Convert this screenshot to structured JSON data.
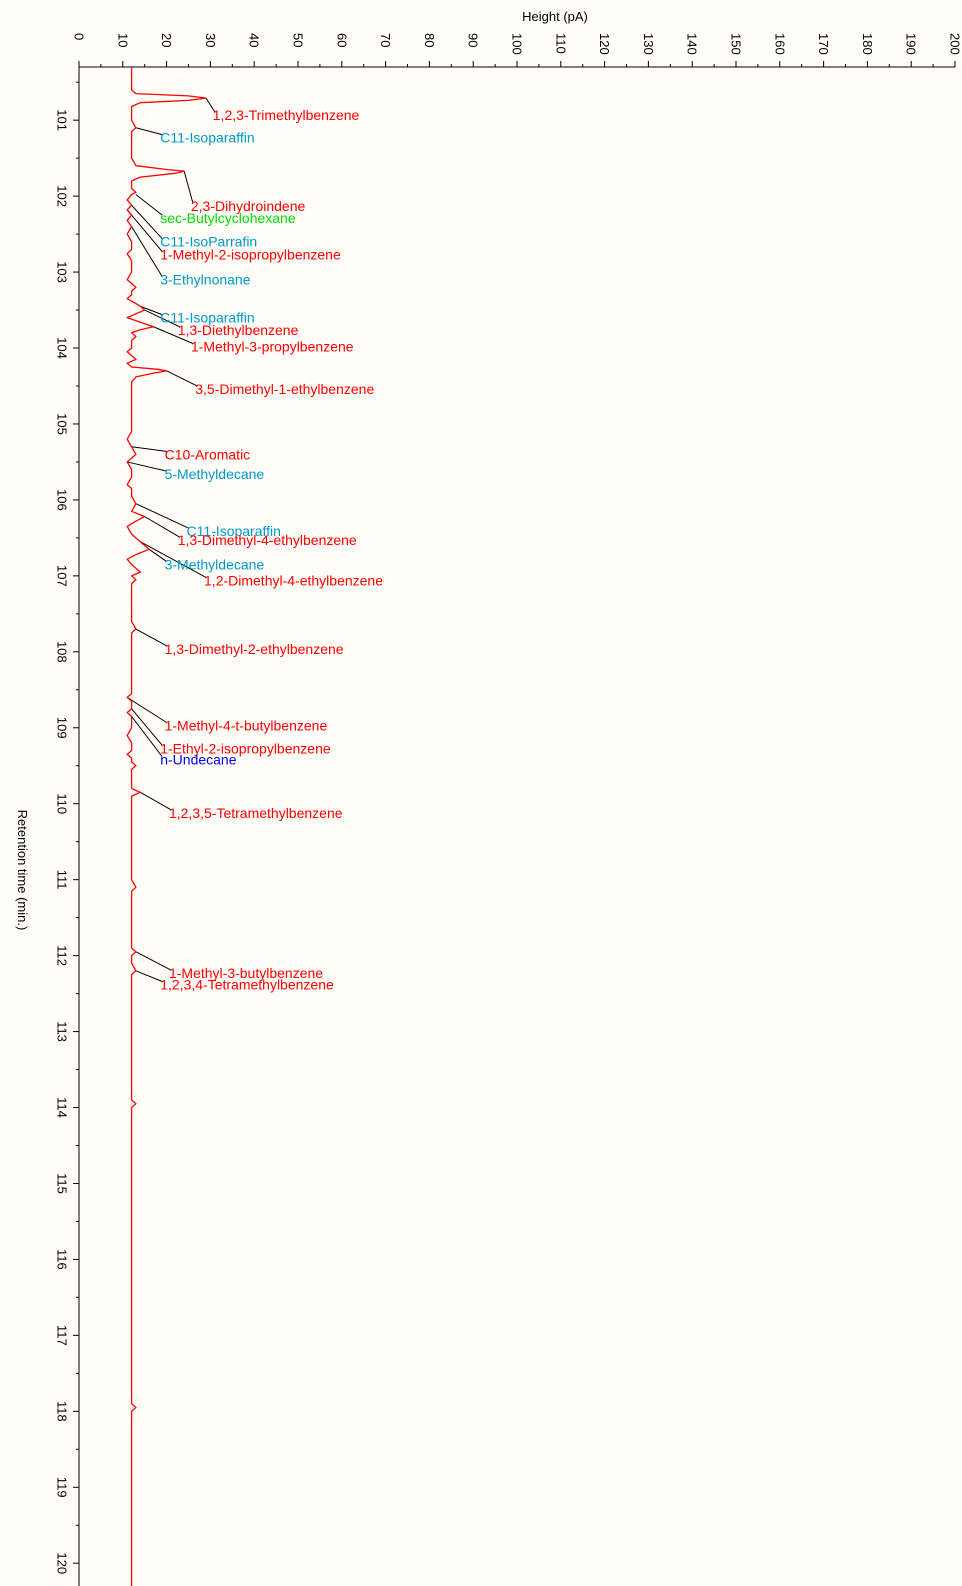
{
  "chart_data": {
    "type": "line",
    "xlabel": "Height (pA)",
    "ylabel": "Retention time (min.)",
    "xlim": [
      0,
      200
    ],
    "ylim": [
      100.3,
      120.3
    ],
    "x_ticks": [
      "0",
      "10",
      "20",
      "30",
      "40",
      "50",
      "60",
      "70",
      "80",
      "90",
      "100",
      "110",
      "120",
      "130",
      "140",
      "150",
      "160",
      "170",
      "180",
      "190",
      "200"
    ],
    "y_ticks": [
      "101",
      "102",
      "103",
      "104",
      "105",
      "106",
      "107",
      "108",
      "109",
      "110",
      "111",
      "112",
      "113",
      "114",
      "115",
      "116",
      "117",
      "118",
      "119",
      "120"
    ],
    "grid": false,
    "colors": {
      "trace": "#ff0000",
      "aromatic": "#ff0000",
      "isoparaffin": "#0099cc",
      "naphthene": "#00dd00",
      "n_paraffin": "#0000ff",
      "leader": "#000000"
    },
    "series": [
      {
        "color": "#ff0000",
        "points": [
          [
            100.3,
            12
          ],
          [
            100.6,
            12
          ],
          [
            100.65,
            13
          ],
          [
            100.68,
            25
          ],
          [
            100.71,
            29
          ],
          [
            100.74,
            25
          ],
          [
            100.77,
            14
          ],
          [
            100.82,
            12
          ],
          [
            101.0,
            12
          ],
          [
            101.1,
            13
          ],
          [
            101.15,
            12
          ],
          [
            101.5,
            12
          ],
          [
            101.6,
            13
          ],
          [
            101.65,
            20
          ],
          [
            101.67,
            24
          ],
          [
            101.7,
            22
          ],
          [
            101.75,
            14
          ],
          [
            101.8,
            12
          ],
          [
            101.9,
            12
          ],
          [
            101.95,
            13
          ],
          [
            101.98,
            12
          ],
          [
            102.05,
            11
          ],
          [
            102.12,
            12
          ],
          [
            102.18,
            11
          ],
          [
            102.25,
            12
          ],
          [
            102.32,
            11
          ],
          [
            102.4,
            12
          ],
          [
            102.5,
            11
          ],
          [
            102.6,
            12
          ],
          [
            102.7,
            12
          ],
          [
            102.76,
            11
          ],
          [
            102.85,
            12
          ],
          [
            103.0,
            12
          ],
          [
            103.1,
            11
          ],
          [
            103.15,
            12
          ],
          [
            103.2,
            13
          ],
          [
            103.25,
            12
          ],
          [
            103.3,
            12
          ],
          [
            103.35,
            11
          ],
          [
            103.45,
            14
          ],
          [
            103.5,
            15
          ],
          [
            103.55,
            13
          ],
          [
            103.6,
            11
          ],
          [
            103.68,
            15
          ],
          [
            103.72,
            17
          ],
          [
            103.76,
            14
          ],
          [
            103.8,
            12
          ],
          [
            103.85,
            13
          ],
          [
            103.9,
            12
          ],
          [
            104.0,
            12
          ],
          [
            104.05,
            11
          ],
          [
            104.1,
            12
          ],
          [
            104.15,
            13
          ],
          [
            104.2,
            11
          ],
          [
            104.25,
            12
          ],
          [
            104.28,
            18
          ],
          [
            104.3,
            20
          ],
          [
            104.33,
            17
          ],
          [
            104.38,
            13
          ],
          [
            104.45,
            12
          ],
          [
            104.8,
            12
          ],
          [
            105.0,
            12
          ],
          [
            105.1,
            12
          ],
          [
            105.2,
            11
          ],
          [
            105.3,
            12
          ],
          [
            105.4,
            13
          ],
          [
            105.5,
            11
          ],
          [
            105.6,
            12
          ],
          [
            105.7,
            12
          ],
          [
            105.8,
            11
          ],
          [
            105.85,
            12
          ],
          [
            105.95,
            12
          ],
          [
            106.05,
            13
          ],
          [
            106.15,
            12
          ],
          [
            106.22,
            15
          ],
          [
            106.28,
            13
          ],
          [
            106.35,
            11
          ],
          [
            106.45,
            12
          ],
          [
            106.55,
            14
          ],
          [
            106.65,
            16
          ],
          [
            106.72,
            13
          ],
          [
            106.78,
            11
          ],
          [
            106.85,
            12
          ],
          [
            106.9,
            13
          ],
          [
            106.95,
            14
          ],
          [
            107.0,
            12
          ],
          [
            107.05,
            13
          ],
          [
            107.1,
            12
          ],
          [
            107.2,
            12
          ],
          [
            107.5,
            12
          ],
          [
            107.6,
            12
          ],
          [
            107.7,
            13
          ],
          [
            107.75,
            12
          ],
          [
            107.8,
            12
          ],
          [
            108.0,
            12
          ],
          [
            108.2,
            12
          ],
          [
            108.4,
            12
          ],
          [
            108.55,
            12
          ],
          [
            108.6,
            11
          ],
          [
            108.65,
            12
          ],
          [
            108.75,
            12
          ],
          [
            108.8,
            11
          ],
          [
            108.85,
            12
          ],
          [
            109.0,
            12
          ],
          [
            109.1,
            11
          ],
          [
            109.2,
            12
          ],
          [
            109.3,
            12
          ],
          [
            109.35,
            11
          ],
          [
            109.4,
            12
          ],
          [
            109.45,
            12
          ],
          [
            109.5,
            13
          ],
          [
            109.55,
            12
          ],
          [
            109.7,
            12
          ],
          [
            109.8,
            12
          ],
          [
            109.85,
            14
          ],
          [
            109.9,
            12
          ],
          [
            110.0,
            12
          ],
          [
            110.3,
            12
          ],
          [
            110.5,
            12
          ],
          [
            110.6,
            12
          ],
          [
            110.85,
            12
          ],
          [
            111.0,
            12
          ],
          [
            111.1,
            13
          ],
          [
            111.15,
            12
          ],
          [
            111.3,
            12
          ],
          [
            111.5,
            12
          ],
          [
            111.6,
            12
          ],
          [
            111.9,
            12
          ],
          [
            111.95,
            13
          ],
          [
            112.0,
            12
          ],
          [
            112.1,
            12
          ],
          [
            112.2,
            13
          ],
          [
            112.25,
            12
          ],
          [
            112.35,
            12
          ],
          [
            112.45,
            12
          ],
          [
            112.55,
            12
          ],
          [
            113.0,
            12
          ],
          [
            113.5,
            12
          ],
          [
            113.9,
            12
          ],
          [
            113.95,
            13
          ],
          [
            114.0,
            12
          ],
          [
            114.5,
            12
          ],
          [
            115.0,
            12
          ],
          [
            116.0,
            12
          ],
          [
            117.0,
            12
          ],
          [
            117.9,
            12
          ],
          [
            117.95,
            13
          ],
          [
            118.0,
            12
          ],
          [
            119.0,
            12
          ],
          [
            119.5,
            12
          ],
          [
            120.3,
            12
          ]
        ]
      }
    ],
    "annotations": [
      {
        "text": "1,2,3-Trimethylbenzene",
        "rt": 100.71,
        "height": 29,
        "ty": 100.93,
        "tx": 31,
        "kind": "aromatic"
      },
      {
        "text": "C11-Isoparaffin",
        "rt": 101.1,
        "height": 13,
        "ty": 101.23,
        "tx": 19,
        "kind": "isoparaffin"
      },
      {
        "text": "2,3-Dihydroindene",
        "rt": 101.67,
        "height": 24,
        "ty": 102.13,
        "tx": 26,
        "kind": "aromatic"
      },
      {
        "text": "sec-Butylcyclohexane",
        "rt": 101.98,
        "height": 13,
        "ty": 102.29,
        "tx": 19,
        "kind": "naphthene"
      },
      {
        "text": "C11-IsoParrafin",
        "rt": 102.12,
        "height": 12,
        "ty": 102.6,
        "tx": 19,
        "kind": "isoparaffin"
      },
      {
        "text": "1-Methyl-2-isopropylbenzene",
        "rt": 102.25,
        "height": 12,
        "ty": 102.77,
        "tx": 19,
        "kind": "aromatic"
      },
      {
        "text": "3-Ethylnonane",
        "rt": 102.4,
        "height": 12,
        "ty": 103.1,
        "tx": 19,
        "kind": "isoparaffin"
      },
      {
        "text": "C11-Isoparaffin",
        "rt": 103.45,
        "height": 14,
        "ty": 103.6,
        "tx": 19,
        "kind": "isoparaffin"
      },
      {
        "text": "1,3-Diethylbenzene",
        "rt": 103.5,
        "height": 15,
        "ty": 103.76,
        "tx": 23,
        "kind": "aromatic"
      },
      {
        "text": "1-Methyl-3-propylbenzene",
        "rt": 103.72,
        "height": 17,
        "ty": 103.98,
        "tx": 26,
        "kind": "aromatic"
      },
      {
        "text": "3,5-Dimethyl-1-ethylbenzene",
        "rt": 104.3,
        "height": 20,
        "ty": 104.54,
        "tx": 27,
        "kind": "aromatic"
      },
      {
        "text": "C10-Aromatic",
        "rt": 105.3,
        "height": 12,
        "ty": 105.4,
        "tx": 20,
        "kind": "aromatic"
      },
      {
        "text": "5-Methyldecane",
        "rt": 105.5,
        "height": 11,
        "ty": 105.66,
        "tx": 20,
        "kind": "isoparaffin"
      },
      {
        "text": "C11-Isoparaffin",
        "rt": 106.05,
        "height": 13,
        "ty": 106.41,
        "tx": 25,
        "kind": "isoparaffin"
      },
      {
        "text": "1,3-Dimethyl-4-ethylbenzene",
        "rt": 106.22,
        "height": 15,
        "ty": 106.53,
        "tx": 23,
        "kind": "aromatic"
      },
      {
        "text": "3-Methyldecane",
        "rt": 106.65,
        "height": 16,
        "ty": 106.85,
        "tx": 20,
        "kind": "isoparaffin"
      },
      {
        "text": "1,2-Dimethyl-4-ethylbenzene",
        "rt": 106.55,
        "height": 14,
        "ty": 107.06,
        "tx": 29,
        "kind": "aromatic"
      },
      {
        "text": "1,3-Dimethyl-2-ethylbenzene",
        "rt": 107.7,
        "height": 13,
        "ty": 107.96,
        "tx": 20,
        "kind": "aromatic"
      },
      {
        "text": "1-Methyl-4-t-butylbenzene",
        "rt": 108.6,
        "height": 11,
        "ty": 108.97,
        "tx": 20,
        "kind": "aromatic"
      },
      {
        "text": "1-Ethyl-2-isopropylbenzene",
        "rt": 108.75,
        "height": 12,
        "ty": 109.27,
        "tx": 19,
        "kind": "aromatic"
      },
      {
        "text": "n-Undecane",
        "rt": 108.85,
        "height": 12,
        "ty": 109.42,
        "tx": 19,
        "kind": "n_paraffin"
      },
      {
        "text": "1,2,3,5-Tetramethylbenzene",
        "rt": 109.85,
        "height": 14,
        "ty": 110.12,
        "tx": 21,
        "kind": "aromatic"
      },
      {
        "text": "1-Methyl-3-butylbenzene",
        "rt": 111.95,
        "height": 13,
        "ty": 112.23,
        "tx": 21,
        "kind": "aromatic"
      },
      {
        "text": "1,2,3,4-Tetramethylbenzene",
        "rt": 112.2,
        "height": 13,
        "ty": 112.38,
        "tx": 19,
        "kind": "aromatic"
      }
    ]
  }
}
